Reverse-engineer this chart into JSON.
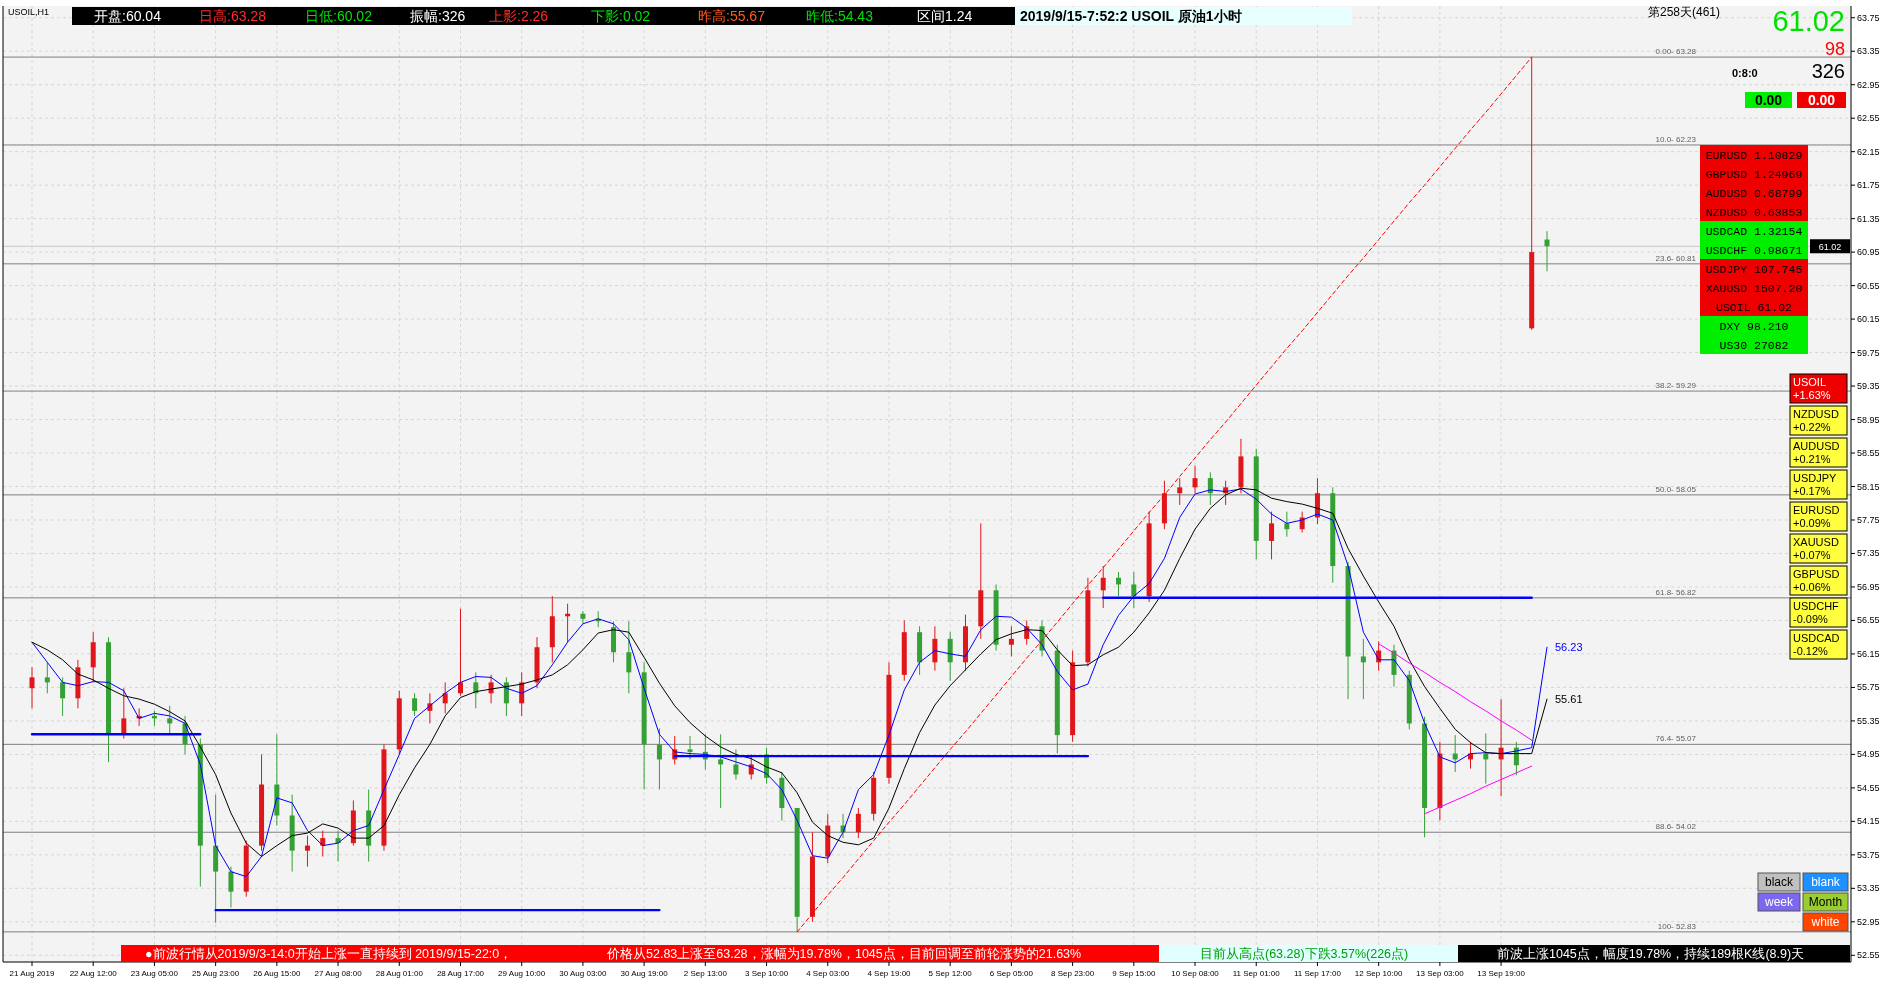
{
  "chart_data": {
    "type": "candlestick",
    "title": "2019/9/15-7:52:2 USOIL 原油1小时",
    "categories": [
      "21 Aug 2019",
      null,
      null,
      null,
      "22 Aug 12:00",
      null,
      null,
      null,
      "23 Aug 05:00",
      null,
      null,
      null,
      "25 Aug 23:00",
      null,
      null,
      null,
      "26 Aug 15:00",
      null,
      null,
      null,
      "27 Aug 08:00",
      null,
      null,
      null,
      "28 Aug 01:00",
      null,
      null,
      null,
      "28 Aug 17:00",
      null,
      null,
      null,
      "29 Aug 10:00",
      null,
      null,
      null,
      "30 Aug 03:00",
      null,
      null,
      null,
      "30 Aug 19:00",
      null,
      null,
      null,
      "2 Sep 13:00",
      null,
      null,
      null,
      "3 Sep 10:00",
      null,
      null,
      null,
      "4 Sep 03:00",
      null,
      null,
      null,
      "4 Sep 19:00",
      null,
      null,
      null,
      "5 Sep 12:00",
      null,
      null,
      null,
      "6 Sep 05:00",
      null,
      null,
      null,
      "8 Sep 23:00",
      null,
      null,
      null,
      "9 Sep 15:00",
      null,
      null,
      null,
      "10 Sep 08:00",
      null,
      null,
      null,
      "11 Sep 01:00",
      null,
      null,
      null,
      "11 Sep 17:00",
      null,
      null,
      null,
      "12 Sep 10:00",
      null,
      null,
      null,
      "13 Sep 03:00",
      null,
      null,
      null,
      "13 Sep 19:00",
      null,
      null,
      null
    ],
    "ohlc": [
      [
        55.74,
        55.99,
        55.5,
        55.87
      ],
      [
        55.87,
        56.05,
        55.68,
        55.81
      ],
      [
        55.81,
        55.87,
        55.41,
        55.62
      ],
      [
        55.62,
        56.08,
        55.5,
        55.99
      ],
      [
        55.99,
        56.41,
        55.81,
        56.29
      ],
      [
        56.29,
        56.35,
        54.86,
        55.19
      ],
      [
        55.19,
        55.74,
        55.14,
        55.38
      ],
      [
        55.38,
        55.5,
        55.29,
        55.41
      ],
      [
        55.41,
        55.47,
        55.29,
        55.38
      ],
      [
        55.38,
        55.53,
        55.19,
        55.32
      ],
      [
        55.32,
        55.41,
        54.95,
        55.07
      ],
      [
        55.07,
        55.14,
        53.37,
        53.86
      ],
      [
        53.86,
        54.47,
        52.94,
        53.55
      ],
      [
        53.55,
        53.61,
        53.12,
        53.31
      ],
      [
        53.31,
        53.92,
        53.25,
        53.86
      ],
      [
        53.86,
        54.95,
        53.8,
        54.59
      ],
      [
        54.59,
        55.19,
        54.1,
        54.22
      ],
      [
        54.22,
        54.47,
        53.55,
        53.8
      ],
      [
        53.8,
        53.98,
        53.61,
        53.86
      ],
      [
        53.86,
        54.04,
        53.73,
        53.95
      ],
      [
        53.95,
        54.04,
        53.67,
        53.89
      ],
      [
        53.89,
        54.4,
        53.86,
        54.28
      ],
      [
        54.28,
        54.53,
        53.67,
        53.86
      ],
      [
        53.86,
        55.07,
        53.8,
        55.01
      ],
      [
        55.01,
        55.71,
        54.95,
        55.62
      ],
      [
        55.62,
        55.68,
        55.41,
        55.47
      ],
      [
        55.47,
        55.68,
        55.32,
        55.56
      ],
      [
        55.56,
        55.81,
        55.44,
        55.68
      ],
      [
        55.68,
        56.69,
        55.65,
        55.81
      ],
      [
        55.81,
        55.93,
        55.5,
        55.68
      ],
      [
        55.68,
        55.9,
        55.56,
        55.81
      ],
      [
        55.81,
        55.87,
        55.41,
        55.56
      ],
      [
        55.56,
        55.93,
        55.41,
        55.81
      ],
      [
        55.81,
        56.35,
        55.74,
        56.23
      ],
      [
        56.23,
        56.84,
        56.05,
        56.6
      ],
      [
        56.6,
        56.75,
        56.29,
        56.63
      ],
      [
        56.63,
        56.66,
        56.51,
        56.57
      ],
      [
        56.57,
        56.66,
        56.47,
        56.54
      ],
      [
        56.47,
        56.54,
        56.05,
        56.17
      ],
      [
        56.17,
        56.54,
        55.68,
        55.93
      ],
      [
        55.93,
        56.05,
        54.53,
        55.07
      ],
      [
        55.07,
        55.26,
        54.53,
        54.89
      ],
      [
        54.89,
        55.17,
        54.83,
        55.01
      ],
      [
        55.01,
        55.17,
        54.89,
        54.98
      ],
      [
        54.98,
        55.19,
        54.77,
        54.89
      ],
      [
        54.89,
        55.19,
        54.31,
        54.83
      ],
      [
        54.83,
        55.01,
        54.65,
        54.71
      ],
      [
        54.71,
        54.95,
        54.65,
        54.83
      ],
      [
        54.95,
        55.03,
        54.6,
        54.67
      ],
      [
        54.67,
        54.74,
        54.16,
        54.31
      ],
      [
        54.31,
        54.31,
        52.83,
        53.01
      ],
      [
        53.01,
        54.02,
        52.95,
        53.73
      ],
      [
        53.73,
        54.24,
        53.65,
        54.1
      ],
      [
        54.1,
        54.24,
        53.95,
        54.02
      ],
      [
        54.02,
        54.31,
        53.95,
        54.24
      ],
      [
        54.24,
        54.74,
        54.16,
        54.67
      ],
      [
        54.67,
        56.05,
        54.6,
        55.9
      ],
      [
        55.9,
        56.55,
        55.83,
        56.41
      ],
      [
        56.41,
        56.48,
        55.9,
        56.05
      ],
      [
        56.05,
        56.48,
        55.95,
        56.33
      ],
      [
        56.33,
        56.41,
        55.83,
        56.05
      ],
      [
        56.05,
        56.62,
        55.95,
        56.48
      ],
      [
        56.48,
        57.71,
        56.33,
        56.91
      ],
      [
        56.91,
        56.98,
        56.19,
        56.26
      ],
      [
        56.26,
        56.48,
        56.12,
        56.33
      ],
      [
        56.33,
        56.55,
        56.26,
        56.48
      ],
      [
        56.48,
        56.55,
        56.12,
        56.19
      ],
      [
        56.19,
        56.26,
        54.96,
        55.18
      ],
      [
        55.18,
        56.19,
        55.1,
        56.05
      ],
      [
        56.05,
        57.06,
        56.0,
        56.91
      ],
      [
        56.91,
        57.2,
        56.7,
        57.06
      ],
      [
        57.06,
        57.13,
        56.84,
        56.98
      ],
      [
        56.98,
        57.13,
        56.7,
        56.84
      ],
      [
        56.84,
        57.85,
        56.77,
        57.71
      ],
      [
        57.71,
        58.22,
        57.64,
        58.07
      ],
      [
        58.07,
        58.25,
        57.93,
        58.14
      ],
      [
        58.14,
        58.4,
        58.07,
        58.25
      ],
      [
        58.25,
        58.32,
        57.93,
        58.07
      ],
      [
        58.07,
        58.22,
        57.93,
        58.14
      ],
      [
        58.14,
        58.72,
        58.07,
        58.51
      ],
      [
        58.51,
        58.6,
        57.28,
        57.5
      ],
      [
        57.5,
        57.85,
        57.28,
        57.71
      ],
      [
        57.71,
        57.85,
        57.55,
        57.64
      ],
      [
        57.64,
        57.85,
        57.6,
        57.78
      ],
      [
        57.78,
        58.25,
        57.7,
        58.07
      ],
      [
        58.07,
        58.14,
        57.0,
        57.2
      ],
      [
        57.2,
        57.25,
        55.61,
        56.12
      ],
      [
        56.12,
        56.33,
        55.61,
        56.05
      ],
      [
        56.05,
        56.3,
        55.95,
        56.19
      ],
      [
        56.19,
        56.26,
        55.76,
        55.9
      ],
      [
        55.9,
        55.95,
        55.25,
        55.32
      ],
      [
        55.32,
        55.4,
        53.96,
        54.31
      ],
      [
        54.31,
        55.1,
        54.16,
        54.96
      ],
      [
        54.96,
        55.18,
        54.74,
        54.89
      ],
      [
        54.89,
        55.1,
        54.78,
        54.96
      ],
      [
        54.96,
        55.2,
        54.6,
        54.89
      ],
      [
        54.89,
        55.61,
        54.45,
        55.03
      ],
      [
        55.03,
        55.1,
        54.7,
        54.82
      ],
      [
        60.04,
        63.28,
        60.02,
        60.95
      ],
      [
        61.1,
        61.2,
        60.72,
        61.02
      ]
    ],
    "series": [
      {
        "type": "line",
        "color": "#0000ff",
        "values": [
          56.29,
          56.05,
          55.81,
          55.77,
          55.82,
          55.81,
          55.71,
          55.38,
          55.44,
          55.41,
          55.32,
          54.83,
          53.86,
          53.55,
          53.49,
          53.73,
          54.43,
          54.37,
          54.04,
          53.86,
          53.89,
          54.04,
          54.1,
          54.53,
          54.95,
          55.38,
          55.53,
          55.68,
          55.81,
          55.88,
          55.87,
          55.74,
          55.68,
          55.77,
          56.02,
          56.29,
          56.51,
          56.57,
          56.51,
          56.32,
          55.74,
          55.19,
          54.98,
          54.96,
          54.95,
          54.92,
          54.86,
          54.8,
          54.72,
          54.53,
          54.16,
          53.74,
          53.71,
          54.02,
          54.53,
          54.71,
          55.18,
          55.72,
          56.05,
          56.19,
          56.15,
          56.12,
          56.44,
          56.6,
          56.59,
          56.46,
          56.26,
          55.94,
          55.72,
          55.79,
          56.26,
          56.61,
          56.84,
          56.99,
          57.29,
          57.78,
          58.06,
          58.11,
          58.09,
          58.12,
          58.0,
          57.82,
          57.71,
          57.75,
          57.82,
          57.75,
          57.2,
          56.41,
          56.08,
          56.08,
          55.83,
          55.32,
          54.92,
          54.85,
          54.96,
          54.97,
          54.96,
          54.99,
          55.03,
          56.23
        ]
      },
      {
        "type": "line",
        "color": "#000000",
        "values": [
          56.29,
          56.2,
          56.08,
          55.91,
          55.84,
          55.74,
          55.65,
          55.61,
          55.55,
          55.46,
          55.35,
          55.04,
          54.71,
          54.25,
          53.89,
          53.73,
          53.86,
          53.98,
          54.01,
          54.12,
          54.07,
          53.95,
          53.95,
          54.1,
          54.47,
          54.79,
          55.07,
          55.41,
          55.63,
          55.7,
          55.73,
          55.76,
          55.79,
          55.84,
          55.9,
          56.02,
          56.2,
          56.4,
          56.44,
          56.41,
          56.11,
          55.8,
          55.53,
          55.33,
          55.17,
          55.04,
          54.95,
          54.9,
          54.8,
          54.73,
          54.49,
          54.14,
          53.98,
          53.9,
          53.87,
          53.95,
          54.31,
          54.78,
          55.21,
          55.54,
          55.77,
          55.96,
          56.15,
          56.32,
          56.39,
          56.44,
          56.43,
          56.2,
          56.01,
          56.02,
          56.14,
          56.23,
          56.41,
          56.64,
          56.91,
          57.29,
          57.64,
          57.89,
          58.05,
          58.13,
          58.11,
          58.01,
          57.97,
          57.94,
          57.89,
          57.83,
          57.41,
          57.08,
          56.77,
          56.48,
          56.08,
          55.76,
          55.5,
          55.25,
          55.09,
          54.97,
          54.96,
          54.96,
          54.96,
          55.61
        ]
      },
      {
        "type": "line",
        "color": "#0000ff",
        "values": [
          55.19,
          55.19,
          55.19,
          55.19,
          55.19,
          55.19,
          55.19,
          55.19,
          55.19,
          55.19,
          55.19,
          55.19,
          null,
          null,
          null,
          null,
          null,
          null,
          null,
          null,
          null,
          null,
          null,
          null,
          null,
          null,
          null,
          null,
          null,
          null,
          null,
          null,
          null,
          null,
          null,
          null,
          null,
          null,
          null,
          null,
          null,
          null,
          54.93,
          54.93,
          54.93,
          54.93,
          54.93,
          54.93,
          54.93,
          54.93,
          54.93,
          54.93,
          54.93,
          54.93,
          54.93,
          54.93,
          54.93,
          54.93,
          54.93,
          54.93,
          54.93,
          54.93,
          54.93,
          54.93,
          54.93,
          54.93,
          54.93,
          54.93,
          54.93,
          54.93,
          null,
          null,
          null,
          null,
          null,
          null,
          null,
          null,
          null,
          null,
          null,
          null,
          null,
          null,
          null,
          null,
          null,
          null,
          null,
          null,
          null,
          null,
          null,
          null,
          null,
          null,
          null,
          null,
          null,
          null
        ]
      },
      {
        "type": "line",
        "color": "#0000ff",
        "values": [
          null,
          null,
          null,
          null,
          null,
          null,
          null,
          null,
          null,
          null,
          null,
          null,
          53.09,
          53.09,
          53.09,
          53.09,
          53.09,
          53.09,
          53.09,
          53.09,
          53.09,
          53.09,
          53.09,
          53.09,
          53.09,
          53.09,
          53.09,
          53.09,
          53.09,
          53.09,
          53.09,
          53.09,
          53.09,
          53.09,
          53.09,
          53.09,
          53.09,
          53.09,
          53.09,
          53.09,
          53.09,
          53.09,
          null,
          null,
          null,
          null,
          null,
          null,
          null,
          null,
          null,
          null,
          null,
          null,
          null,
          null,
          null,
          null,
          null,
          null,
          null,
          null,
          null,
          null,
          null,
          null,
          null,
          null,
          null,
          null,
          56.82,
          56.82,
          56.82,
          56.82,
          56.82,
          56.82,
          56.82,
          56.82,
          56.82,
          56.82,
          56.82,
          56.82,
          56.82,
          56.82,
          56.82,
          56.82,
          56.82,
          56.82,
          56.82,
          56.82,
          56.82,
          56.82,
          56.82,
          56.82,
          56.82,
          56.82,
          56.82,
          56.82,
          56.82,
          null
        ]
      },
      {
        "type": "line",
        "color": "#ff0000",
        "line_style": "dashed",
        "values": [
          null,
          null,
          null,
          null,
          null,
          null,
          null,
          null,
          null,
          null,
          null,
          null,
          null,
          null,
          null,
          null,
          null,
          null,
          null,
          null,
          null,
          null,
          null,
          null,
          null,
          null,
          null,
          null,
          null,
          null,
          null,
          null,
          null,
          null,
          null,
          null,
          null,
          null,
          null,
          null,
          null,
          null,
          null,
          null,
          null,
          null,
          null,
          null,
          null,
          null,
          52.83,
          53.05,
          53.27,
          53.48,
          53.7,
          53.92,
          54.14,
          54.35,
          54.57,
          54.79,
          55.01,
          55.22,
          55.44,
          55.66,
          55.88,
          56.1,
          56.31,
          56.53,
          56.75,
          56.97,
          57.18,
          57.4,
          57.62,
          57.84,
          58.05,
          58.27,
          58.49,
          58.71,
          58.92,
          59.14,
          59.36,
          59.58,
          59.8,
          60.01,
          60.23,
          60.45,
          60.67,
          60.88,
          61.1,
          61.32,
          61.54,
          61.75,
          61.97,
          62.19,
          62.41,
          62.62,
          62.84,
          63.06,
          63.28,
          null
        ]
      },
      {
        "type": "line",
        "color": "#ff00ff",
        "values": [
          null,
          null,
          null,
          null,
          null,
          null,
          null,
          null,
          null,
          null,
          null,
          null,
          null,
          null,
          null,
          null,
          null,
          null,
          null,
          null,
          null,
          null,
          null,
          null,
          null,
          null,
          null,
          null,
          null,
          null,
          null,
          null,
          null,
          null,
          null,
          null,
          null,
          null,
          null,
          null,
          null,
          null,
          null,
          null,
          null,
          null,
          null,
          null,
          null,
          null,
          null,
          null,
          null,
          null,
          null,
          null,
          null,
          null,
          null,
          null,
          null,
          null,
          null,
          null,
          null,
          null,
          null,
          null,
          null,
          null,
          null,
          null,
          null,
          null,
          null,
          null,
          null,
          null,
          null,
          null,
          null,
          null,
          null,
          null,
          null,
          null,
          null,
          null,
          56.27,
          56.16,
          56.04,
          55.93,
          55.81,
          55.7,
          55.58,
          55.47,
          55.35,
          55.24,
          55.12,
          null
        ]
      },
      {
        "type": "line",
        "color": "#ff00ff",
        "values": [
          null,
          null,
          null,
          null,
          null,
          null,
          null,
          null,
          null,
          null,
          null,
          null,
          null,
          null,
          null,
          null,
          null,
          null,
          null,
          null,
          null,
          null,
          null,
          null,
          null,
          null,
          null,
          null,
          null,
          null,
          null,
          null,
          null,
          null,
          null,
          null,
          null,
          null,
          null,
          null,
          null,
          null,
          null,
          null,
          null,
          null,
          null,
          null,
          null,
          null,
          null,
          null,
          null,
          null,
          null,
          null,
          null,
          null,
          null,
          null,
          null,
          null,
          null,
          null,
          null,
          null,
          null,
          null,
          null,
          null,
          null,
          null,
          null,
          null,
          null,
          null,
          null,
          null,
          null,
          null,
          null,
          null,
          null,
          null,
          null,
          null,
          null,
          null,
          null,
          null,
          null,
          54.24,
          54.32,
          54.4,
          54.48,
          54.57,
          54.65,
          54.73,
          54.81,
          null
        ]
      }
    ],
    "ylim": [
      52.47,
      63.89
    ],
    "yticks": [
      52.55,
      52.95,
      53.35,
      53.75,
      54.15,
      54.55,
      54.95,
      55.35,
      55.75,
      56.15,
      56.55,
      56.95,
      57.35,
      57.75,
      58.15,
      58.55,
      58.95,
      59.35,
      59.75,
      60.15,
      60.55,
      60.95,
      61.35,
      61.75,
      62.15,
      62.55,
      62.95,
      63.35,
      63.75
    ],
    "grid": true,
    "ref_lines": [
      {
        "axis": "y",
        "value": 61.02,
        "label": "61.02",
        "color": "#c8c8c8"
      },
      {
        "axis": "y",
        "value": 63.28,
        "color": "#808080"
      },
      {
        "axis": "y",
        "value": 62.23,
        "color": "#808080"
      },
      {
        "axis": "y",
        "value": 60.81,
        "color": "#808080"
      },
      {
        "axis": "y",
        "value": 59.29,
        "color": "#808080"
      },
      {
        "axis": "y",
        "value": 58.05,
        "color": "#808080"
      },
      {
        "axis": "y",
        "value": 56.82,
        "color": "#808080"
      },
      {
        "axis": "y",
        "value": 55.07,
        "color": "#808080"
      },
      {
        "axis": "y",
        "value": 54.02,
        "color": "#808080"
      },
      {
        "axis": "y",
        "value": 52.83,
        "color": "#808080"
      }
    ],
    "annotations": [
      "USOIL,H1",
      "开盘:60.04",
      "日高:63.28",
      "日低:60.02",
      "振幅:326",
      "上影:2.26",
      "下影:0.02",
      "昨高:55.67",
      "昨低:54.43",
      "区间1.24",
      "第258天(461)",
      "61.02",
      "98",
      "0:8:0",
      "326",
      "0.00",
      "0.00",
      "EURUSD 1.10829",
      "GBPUSD 1.24969",
      "AUDUSD 0.68799",
      "NZDUSD 0.63853",
      "USDCAD 1.32154",
      "USDCHF 0.98671",
      "USDJPY 107.745",
      "XAUUSD 1507.20",
      "USOIL 61.02",
      "DXY 98.210",
      "US30 27082",
      "USOIL +1.63%",
      "NZDUSD +0.22%",
      "AUDUSD +0.21%",
      "USDJPY +0.17%",
      "EURUSD +0.09%",
      "XAUUSD +0.07%",
      "GBPUSD +0.06%",
      "USDCHF -0.09%",
      "USDCAD -0.12%",
      "black",
      "blank",
      "week",
      "Month",
      "white",
      "●前波行情从2019/9/3-14:0开始上涨一直持续到 2019/9/15-22:0，",
      "价格从52.83上涨至63.28，涨幅为19.78%，1045点，目前回调至前轮涨势的21.63%",
      "目前从高点(63.28)下跌3.57%(226点)",
      "前波上涨1045点，幅度19.78%，持续189根K线(8.9)天",
      "56.23",
      "55.61",
      {
        "text": "0.00- 63.28",
        "y": 63.28
      },
      {
        "text": "10.0- 62.23",
        "y": 62.23
      },
      {
        "text": "23.6- 60.81",
        "y": 60.81
      },
      {
        "text": "38.2- 59.29",
        "y": 59.29
      },
      {
        "text": "50.0- 58.05",
        "y": 58.05
      },
      {
        "text": "61.8- 56.82",
        "y": 56.82
      },
      {
        "text": "76.4- 55.07",
        "y": 55.07
      },
      {
        "text": "88.6- 54.02",
        "y": 54.02
      },
      {
        "text": "100- 52.83",
        "y": 52.83
      }
    ]
  }
}
